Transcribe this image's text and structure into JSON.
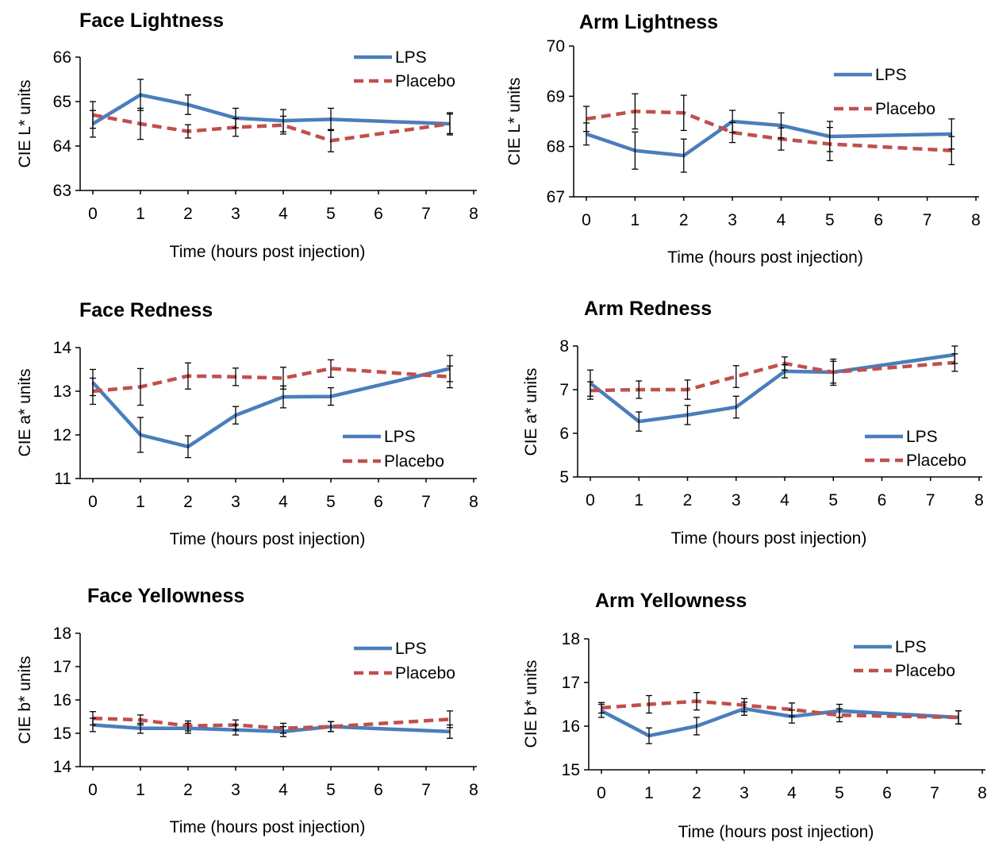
{
  "colors": {
    "lps": "#4a7ebb",
    "placebo": "#c0504d",
    "axis": "#000000",
    "errbar": "#000000"
  },
  "chart_data": [
    {
      "type": "line",
      "title": "Face Lightness",
      "xlabel": "Time (hours post injection)",
      "ylabel": "CIE L* units",
      "xlim": [
        0,
        8
      ],
      "ylim": [
        63,
        66
      ],
      "xticks": [
        0,
        1,
        2,
        3,
        4,
        5,
        6,
        7,
        8
      ],
      "yticks": [
        63,
        64,
        65,
        66
      ],
      "grid": false,
      "legend": "top-right",
      "x": [
        0,
        1,
        2,
        3,
        4,
        5,
        7.5
      ],
      "series": [
        {
          "name": "LPS",
          "key": "lps",
          "dash": false,
          "values": [
            64.5,
            65.15,
            64.93,
            64.63,
            64.57,
            64.6,
            64.5
          ],
          "err": [
            0.3,
            0.35,
            0.22,
            0.22,
            0.25,
            0.25,
            0.25
          ]
        },
        {
          "name": "Placebo",
          "key": "placebo",
          "dash": true,
          "values": [
            64.7,
            64.5,
            64.33,
            64.42,
            64.47,
            64.12,
            64.5
          ],
          "err": [
            0.3,
            0.35,
            0.15,
            0.2,
            0.2,
            0.25,
            0.22
          ]
        }
      ]
    },
    {
      "type": "line",
      "title": "Arm Lightness",
      "xlabel": "Time (hours post injection)",
      "ylabel": "CIE L* units",
      "xlim": [
        0,
        8
      ],
      "ylim": [
        67,
        70
      ],
      "xticks": [
        0,
        1,
        2,
        3,
        4,
        5,
        6,
        7,
        8
      ],
      "yticks": [
        67,
        68,
        69,
        70
      ],
      "grid": false,
      "legend": "top-right",
      "x": [
        0,
        1,
        2,
        3,
        4,
        5,
        7.5
      ],
      "series": [
        {
          "name": "LPS",
          "key": "lps",
          "dash": false,
          "values": [
            68.25,
            67.92,
            67.82,
            68.5,
            68.42,
            68.2,
            68.25
          ],
          "err": [
            0.22,
            0.37,
            0.33,
            0.22,
            0.25,
            0.3,
            0.3
          ]
        },
        {
          "name": "Placebo",
          "key": "placebo",
          "dash": true,
          "values": [
            68.55,
            68.7,
            68.67,
            68.28,
            68.15,
            68.05,
            67.92
          ],
          "err": [
            0.25,
            0.35,
            0.35,
            0.2,
            0.22,
            0.33,
            0.28
          ]
        }
      ]
    },
    {
      "type": "line",
      "title": "Face Redness",
      "xlabel": "Time (hours post injection)",
      "ylabel": "CIE a* units",
      "xlim": [
        0,
        8
      ],
      "ylim": [
        11,
        14
      ],
      "xticks": [
        0,
        1,
        2,
        3,
        4,
        5,
        6,
        7,
        8
      ],
      "yticks": [
        11,
        12,
        13,
        14
      ],
      "grid": false,
      "legend": "lower-right",
      "x": [
        0,
        1,
        2,
        3,
        4,
        5,
        7.5
      ],
      "series": [
        {
          "name": "LPS",
          "key": "lps",
          "dash": false,
          "values": [
            13.2,
            12.0,
            11.73,
            12.45,
            12.87,
            12.88,
            13.52
          ],
          "err": [
            0.3,
            0.4,
            0.25,
            0.2,
            0.25,
            0.2,
            0.3
          ]
        },
        {
          "name": "Placebo",
          "key": "placebo",
          "dash": true,
          "values": [
            13.0,
            13.1,
            13.35,
            13.33,
            13.3,
            13.52,
            13.33
          ],
          "err": [
            0.3,
            0.42,
            0.3,
            0.2,
            0.25,
            0.2,
            0.25
          ]
        }
      ]
    },
    {
      "type": "line",
      "title": "Arm Redness",
      "xlabel": "Time (hours post injection)",
      "ylabel": "CIE a* units",
      "xlim": [
        0,
        8
      ],
      "ylim": [
        5,
        8
      ],
      "xticks": [
        0,
        1,
        2,
        3,
        4,
        5,
        6,
        7,
        8
      ],
      "yticks": [
        5,
        6,
        7,
        8
      ],
      "grid": false,
      "legend": "lower-right",
      "x": [
        0,
        1,
        2,
        3,
        4,
        5,
        7.5
      ],
      "series": [
        {
          "name": "LPS",
          "key": "lps",
          "dash": false,
          "values": [
            7.15,
            6.27,
            6.42,
            6.6,
            7.42,
            7.4,
            7.8
          ],
          "err": [
            0.3,
            0.22,
            0.22,
            0.25,
            0.15,
            0.3,
            0.2
          ]
        },
        {
          "name": "Placebo",
          "key": "placebo",
          "dash": true,
          "values": [
            6.98,
            7.0,
            7.0,
            7.3,
            7.6,
            7.4,
            7.62
          ],
          "err": [
            0.2,
            0.2,
            0.22,
            0.25,
            0.15,
            0.25,
            0.2
          ]
        }
      ]
    },
    {
      "type": "line",
      "title": "Face Yellowness",
      "xlabel": "Time (hours post injection)",
      "ylabel": "CIE b* units",
      "xlim": [
        0,
        8
      ],
      "ylim": [
        14,
        18
      ],
      "xticks": [
        0,
        1,
        2,
        3,
        4,
        5,
        6,
        7,
        8
      ],
      "yticks": [
        14,
        15,
        16,
        17,
        18
      ],
      "grid": false,
      "legend": "top-right",
      "x": [
        0,
        1,
        2,
        3,
        4,
        5,
        7.5
      ],
      "series": [
        {
          "name": "LPS",
          "key": "lps",
          "dash": false,
          "values": [
            15.25,
            15.15,
            15.15,
            15.1,
            15.05,
            15.2,
            15.05
          ],
          "err": [
            0.2,
            0.15,
            0.15,
            0.15,
            0.15,
            0.15,
            0.2
          ]
        },
        {
          "name": "Placebo",
          "key": "placebo",
          "dash": true,
          "values": [
            15.45,
            15.4,
            15.22,
            15.25,
            15.15,
            15.2,
            15.42
          ],
          "err": [
            0.2,
            0.15,
            0.15,
            0.15,
            0.15,
            0.15,
            0.25
          ]
        }
      ]
    },
    {
      "type": "line",
      "title": "Arm Yellowness",
      "xlabel": "Time (hours post injection)",
      "ylabel": "CIE b* units",
      "xlim": [
        0,
        8
      ],
      "ylim": [
        15,
        18
      ],
      "xticks": [
        0,
        1,
        2,
        3,
        4,
        5,
        6,
        7,
        8
      ],
      "yticks": [
        15,
        16,
        17,
        18
      ],
      "grid": false,
      "legend": "top-right",
      "x": [
        0,
        1,
        2,
        3,
        4,
        5,
        7.5
      ],
      "series": [
        {
          "name": "LPS",
          "key": "lps",
          "dash": false,
          "values": [
            16.35,
            15.78,
            16.0,
            16.4,
            16.22,
            16.35,
            16.2
          ],
          "err": [
            0.15,
            0.18,
            0.2,
            0.15,
            0.15,
            0.15,
            0.15
          ]
        },
        {
          "name": "Placebo",
          "key": "placebo",
          "dash": true,
          "values": [
            16.42,
            16.5,
            16.57,
            16.48,
            16.38,
            16.25,
            16.2
          ],
          "err": [
            0.12,
            0.2,
            0.2,
            0.15,
            0.15,
            0.15,
            0.15
          ]
        }
      ]
    }
  ]
}
